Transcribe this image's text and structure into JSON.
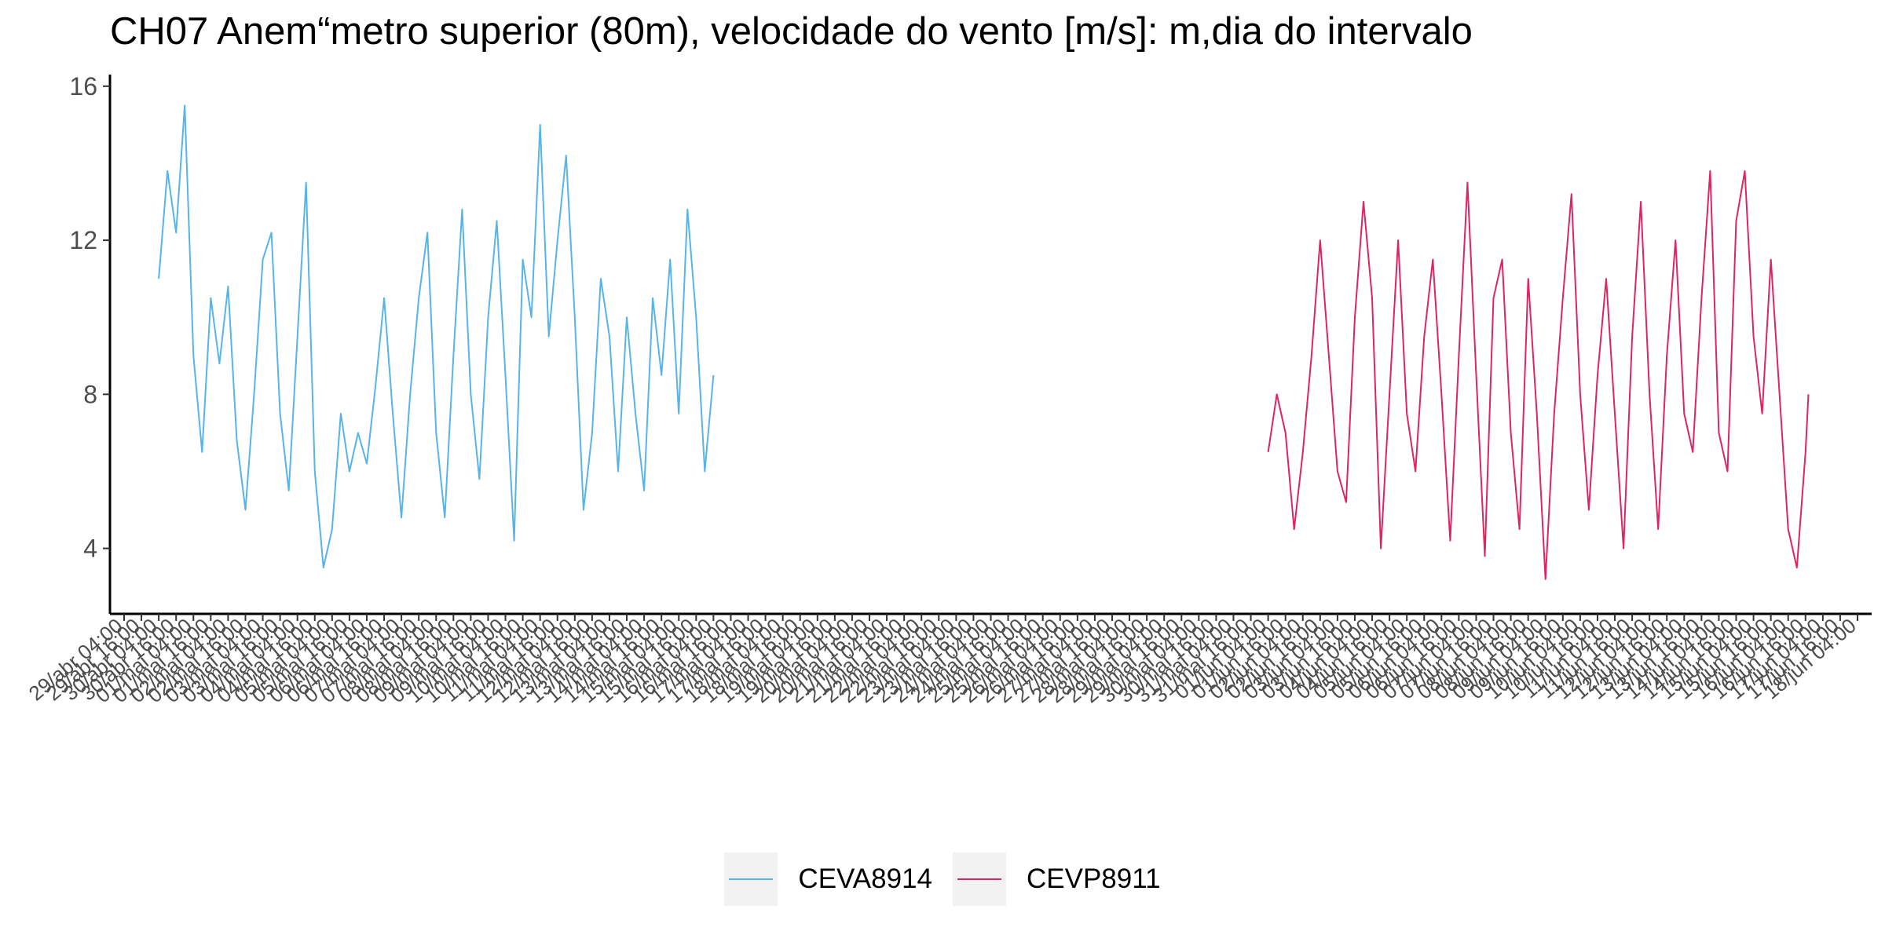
{
  "chart_data": {
    "type": "line",
    "title": "CH07 Anem“metro superior (80m), velocidade do vento [m/s]: m,dia do intervalo",
    "xlabel": "",
    "ylabel": "",
    "ylim": [
      2.3,
      16.2
    ],
    "yticks": [
      4,
      8,
      12,
      16
    ],
    "grid": false,
    "legend_position": "bottom",
    "x_axis": {
      "start": "2024-04-29T04:00",
      "end": "2024-06-18T04:00",
      "step_hours": 12
    },
    "xtick_labels": [
      "29/abr 04:00",
      "29/abr 16:00",
      "30/abr 04:00",
      "30/abr 16:00",
      "01/mai 04:00",
      "01/mai 16:00",
      "02/mai 04:00",
      "02/mai 16:00",
      "03/mai 04:00",
      "03/mai 16:00",
      "04/mai 04:00",
      "04/mai 16:00",
      "05/mai 04:00",
      "05/mai 16:00",
      "06/mai 04:00",
      "06/mai 16:00",
      "07/mai 04:00",
      "07/mai 16:00",
      "08/mai 04:00",
      "08/mai 16:00",
      "09/mai 04:00",
      "09/mai 16:00",
      "10/mai 04:00",
      "10/mai 16:00",
      "11/mai 04:00",
      "11/mai 16:00",
      "12/mai 04:00",
      "12/mai 16:00",
      "13/mai 04:00",
      "13/mai 16:00",
      "14/mai 04:00",
      "14/mai 16:00",
      "15/mai 04:00",
      "15/mai 16:00",
      "16/mai 04:00",
      "16/mai 16:00",
      "17/mai 04:00",
      "17/mai 16:00",
      "18/mai 04:00",
      "18/mai 16:00",
      "19/mai 04:00",
      "19/mai 16:00",
      "20/mai 04:00",
      "20/mai 16:00",
      "21/mai 04:00",
      "21/mai 16:00",
      "22/mai 04:00",
      "22/mai 16:00",
      "23/mai 04:00",
      "23/mai 16:00",
      "24/mai 04:00",
      "24/mai 16:00",
      "25/mai 04:00",
      "25/mai 16:00",
      "26/mai 04:00",
      "26/mai 16:00",
      "27/mai 04:00",
      "27/mai 16:00",
      "28/mai 04:00",
      "28/mai 16:00",
      "29/mai 04:00",
      "29/mai 16:00",
      "30/mai 04:00",
      "30/mai 16:00",
      "31/mai 04:00",
      "31/mai 16:00",
      "01/jun 04:00",
      "01/jun 16:00",
      "02/jun 04:00",
      "02/jun 16:00",
      "03/jun 04:00",
      "03/jun 16:00",
      "04/jun 04:00",
      "04/jun 16:00",
      "05/jun 04:00",
      "05/jun 16:00",
      "06/jun 04:00",
      "06/jun 16:00",
      "07/jun 04:00",
      "07/jun 16:00",
      "08/jun 04:00",
      "08/jun 16:00",
      "09/jun 04:00",
      "09/jun 16:00",
      "10/jun 04:00",
      "10/jun 16:00",
      "11/jun 04:00",
      "11/jun 16:00",
      "12/jun 04:00",
      "12/jun 16:00",
      "13/jun 04:00",
      "13/jun 16:00",
      "14/jun 04:00",
      "14/jun 16:00",
      "15/jun 04:00",
      "15/jun 16:00",
      "16/jun 04:00",
      "16/jun 16:00",
      "17/jun 04:00",
      "17/jun 16:00",
      "18/jun 04:00"
    ],
    "series": [
      {
        "name": "CEVA8914",
        "color": "#56b4e9",
        "points": [
          [
            "2024-04-30T04:00",
            11.0
          ],
          [
            "2024-04-30T10:00",
            13.8
          ],
          [
            "2024-04-30T16:00",
            12.2
          ],
          [
            "2024-04-30T22:00",
            15.5
          ],
          [
            "2024-05-01T04:00",
            9.0
          ],
          [
            "2024-05-01T10:00",
            6.5
          ],
          [
            "2024-05-01T16:00",
            10.5
          ],
          [
            "2024-05-01T22:00",
            8.8
          ],
          [
            "2024-05-02T04:00",
            10.8
          ],
          [
            "2024-05-02T10:00",
            6.8
          ],
          [
            "2024-05-02T16:00",
            5.0
          ],
          [
            "2024-05-02T22:00",
            8.0
          ],
          [
            "2024-05-03T04:00",
            11.5
          ],
          [
            "2024-05-03T10:00",
            12.2
          ],
          [
            "2024-05-03T16:00",
            7.5
          ],
          [
            "2024-05-03T22:00",
            5.5
          ],
          [
            "2024-05-04T04:00",
            9.5
          ],
          [
            "2024-05-04T10:00",
            13.5
          ],
          [
            "2024-05-04T16:00",
            6.0
          ],
          [
            "2024-05-04T22:00",
            3.5
          ],
          [
            "2024-05-05T04:00",
            4.5
          ],
          [
            "2024-05-05T10:00",
            7.5
          ],
          [
            "2024-05-05T16:00",
            6.0
          ],
          [
            "2024-05-05T22:00",
            7.0
          ],
          [
            "2024-05-06T04:00",
            6.2
          ],
          [
            "2024-05-06T10:00",
            8.2
          ],
          [
            "2024-05-06T16:00",
            10.5
          ],
          [
            "2024-05-06T22:00",
            7.5
          ],
          [
            "2024-05-07T04:00",
            4.8
          ],
          [
            "2024-05-07T10:00",
            8.0
          ],
          [
            "2024-05-07T16:00",
            10.5
          ],
          [
            "2024-05-07T22:00",
            12.2
          ],
          [
            "2024-05-08T04:00",
            7.0
          ],
          [
            "2024-05-08T10:00",
            4.8
          ],
          [
            "2024-05-08T16:00",
            9.0
          ],
          [
            "2024-05-08T22:00",
            12.8
          ],
          [
            "2024-05-09T04:00",
            8.0
          ],
          [
            "2024-05-09T10:00",
            5.8
          ],
          [
            "2024-05-09T16:00",
            10.0
          ],
          [
            "2024-05-09T22:00",
            12.5
          ],
          [
            "2024-05-10T04:00",
            8.5
          ],
          [
            "2024-05-10T10:00",
            4.2
          ],
          [
            "2024-05-10T16:00",
            11.5
          ],
          [
            "2024-05-10T22:00",
            10.0
          ],
          [
            "2024-05-11T04:00",
            15.0
          ],
          [
            "2024-05-11T10:00",
            9.5
          ],
          [
            "2024-05-11T16:00",
            12.0
          ],
          [
            "2024-05-11T22:00",
            14.2
          ],
          [
            "2024-05-12T04:00",
            10.0
          ],
          [
            "2024-05-12T10:00",
            5.0
          ],
          [
            "2024-05-12T16:00",
            7.0
          ],
          [
            "2024-05-12T22:00",
            11.0
          ],
          [
            "2024-05-13T04:00",
            9.5
          ],
          [
            "2024-05-13T10:00",
            6.0
          ],
          [
            "2024-05-13T16:00",
            10.0
          ],
          [
            "2024-05-13T22:00",
            7.5
          ],
          [
            "2024-05-14T04:00",
            5.5
          ],
          [
            "2024-05-14T10:00",
            10.5
          ],
          [
            "2024-05-14T16:00",
            8.5
          ],
          [
            "2024-05-14T22:00",
            11.5
          ],
          [
            "2024-05-15T04:00",
            7.5
          ],
          [
            "2024-05-15T10:00",
            12.8
          ],
          [
            "2024-05-15T16:00",
            10.0
          ],
          [
            "2024-05-15T22:00",
            6.0
          ],
          [
            "2024-05-16T04:00",
            8.5
          ]
        ]
      },
      {
        "name": "CEVP8911",
        "color": "#e0245e",
        "points": [
          [
            "2024-06-01T04:00",
            6.5
          ],
          [
            "2024-06-01T10:00",
            8.0
          ],
          [
            "2024-06-01T16:00",
            7.0
          ],
          [
            "2024-06-01T22:00",
            4.5
          ],
          [
            "2024-06-02T04:00",
            6.5
          ],
          [
            "2024-06-02T10:00",
            9.0
          ],
          [
            "2024-06-02T16:00",
            12.0
          ],
          [
            "2024-06-02T22:00",
            9.0
          ],
          [
            "2024-06-03T04:00",
            6.0
          ],
          [
            "2024-06-03T10:00",
            5.2
          ],
          [
            "2024-06-03T16:00",
            10.0
          ],
          [
            "2024-06-03T22:00",
            13.0
          ],
          [
            "2024-06-04T04:00",
            10.5
          ],
          [
            "2024-06-04T10:00",
            4.0
          ],
          [
            "2024-06-04T16:00",
            8.0
          ],
          [
            "2024-06-04T22:00",
            12.0
          ],
          [
            "2024-06-05T04:00",
            7.5
          ],
          [
            "2024-06-05T10:00",
            6.0
          ],
          [
            "2024-06-05T16:00",
            9.5
          ],
          [
            "2024-06-05T22:00",
            11.5
          ],
          [
            "2024-06-06T04:00",
            8.0
          ],
          [
            "2024-06-06T10:00",
            4.2
          ],
          [
            "2024-06-06T16:00",
            9.0
          ],
          [
            "2024-06-06T22:00",
            13.5
          ],
          [
            "2024-06-07T04:00",
            8.5
          ],
          [
            "2024-06-07T10:00",
            3.8
          ],
          [
            "2024-06-07T16:00",
            10.5
          ],
          [
            "2024-06-07T22:00",
            11.5
          ],
          [
            "2024-06-08T04:00",
            7.0
          ],
          [
            "2024-06-08T10:00",
            4.5
          ],
          [
            "2024-06-08T16:00",
            11.0
          ],
          [
            "2024-06-08T22:00",
            7.5
          ],
          [
            "2024-06-09T04:00",
            3.2
          ],
          [
            "2024-06-09T10:00",
            7.5
          ],
          [
            "2024-06-09T16:00",
            10.5
          ],
          [
            "2024-06-09T22:00",
            13.2
          ],
          [
            "2024-06-10T04:00",
            8.0
          ],
          [
            "2024-06-10T10:00",
            5.0
          ],
          [
            "2024-06-10T16:00",
            8.5
          ],
          [
            "2024-06-10T22:00",
            11.0
          ],
          [
            "2024-06-11T04:00",
            7.5
          ],
          [
            "2024-06-11T10:00",
            4.0
          ],
          [
            "2024-06-11T16:00",
            9.5
          ],
          [
            "2024-06-11T22:00",
            13.0
          ],
          [
            "2024-06-12T04:00",
            8.0
          ],
          [
            "2024-06-12T10:00",
            4.5
          ],
          [
            "2024-06-12T16:00",
            9.0
          ],
          [
            "2024-06-12T22:00",
            12.0
          ],
          [
            "2024-06-13T04:00",
            7.5
          ],
          [
            "2024-06-13T10:00",
            6.5
          ],
          [
            "2024-06-13T16:00",
            10.5
          ],
          [
            "2024-06-13T22:00",
            13.8
          ],
          [
            "2024-06-14T04:00",
            7.0
          ],
          [
            "2024-06-14T10:00",
            6.0
          ],
          [
            "2024-06-14T16:00",
            12.5
          ],
          [
            "2024-06-14T22:00",
            13.8
          ],
          [
            "2024-06-15T04:00",
            9.5
          ],
          [
            "2024-06-15T10:00",
            7.5
          ],
          [
            "2024-06-15T16:00",
            11.5
          ],
          [
            "2024-06-15T22:00",
            8.0
          ],
          [
            "2024-06-16T04:00",
            4.5
          ],
          [
            "2024-06-16T10:00",
            3.5
          ],
          [
            "2024-06-16T16:00",
            6.5
          ],
          [
            "2024-06-16T18:00",
            8.0
          ]
        ]
      }
    ]
  }
}
